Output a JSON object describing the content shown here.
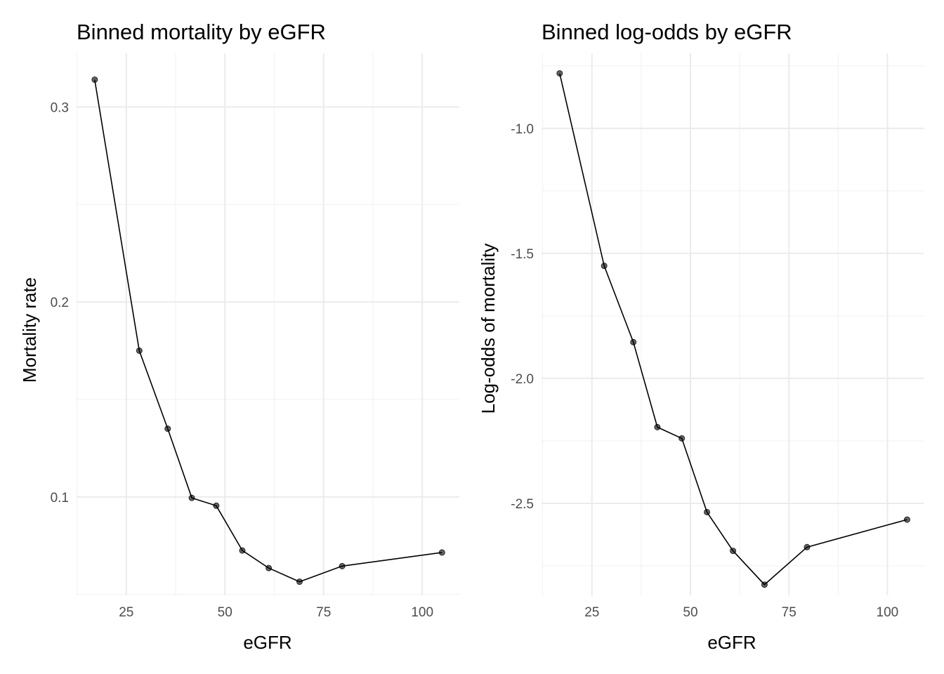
{
  "chart_data": [
    {
      "type": "line",
      "title": "Binned mortality by eGFR",
      "xlabel": "eGFR",
      "ylabel": "Mortality rate",
      "xlim": [
        12.4,
        109.4
      ],
      "ylim": [
        0.0495,
        0.3275
      ],
      "x_ticks": [
        25,
        50,
        75,
        100
      ],
      "y_ticks": [
        0.1,
        0.2,
        0.3
      ],
      "x_tick_labels": [
        "25",
        "50",
        "75",
        "100"
      ],
      "y_tick_labels": [
        "0.1",
        "0.2",
        "0.3"
      ],
      "grid": true,
      "points_and_line": true,
      "series": [
        {
          "x": [
            17.0,
            28.3,
            35.5,
            41.6,
            47.8,
            54.4,
            61.1,
            68.9,
            79.7,
            105.0
          ],
          "y": [
            0.314,
            0.175,
            0.135,
            0.0995,
            0.0955,
            0.0725,
            0.0635,
            0.0565,
            0.0645,
            0.0715
          ]
        }
      ]
    },
    {
      "type": "line",
      "title": "Binned log-odds by eGFR",
      "xlabel": "eGFR",
      "ylabel": "Log-odds of mortality",
      "xlim": [
        12.2,
        109.2
      ],
      "ylim": [
        -2.868,
        -0.7
      ],
      "x_ticks": [
        25,
        50,
        75,
        100
      ],
      "y_ticks": [
        -2.5,
        -2.0,
        -1.5,
        -1.0
      ],
      "x_tick_labels": [
        "25",
        "50",
        "75",
        "100"
      ],
      "y_tick_labels": [
        "-2.5",
        "-2.0",
        "-1.5",
        "-1.0"
      ],
      "grid": true,
      "points_and_line": true,
      "series": [
        {
          "x": [
            16.8,
            28.1,
            35.5,
            41.6,
            47.8,
            54.2,
            60.8,
            68.8,
            79.6,
            105.0
          ],
          "y": [
            -0.78,
            -1.55,
            -1.855,
            -2.195,
            -2.24,
            -2.535,
            -2.69,
            -2.825,
            -2.675,
            -2.565
          ]
        }
      ]
    }
  ]
}
